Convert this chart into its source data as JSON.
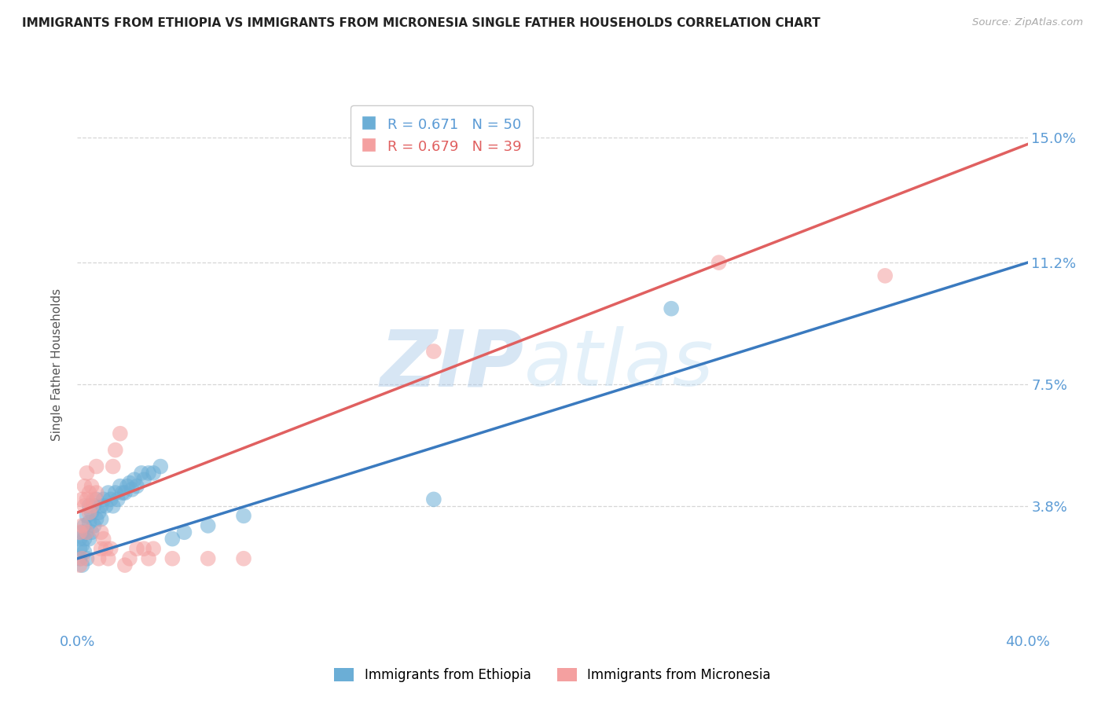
{
  "title": "IMMIGRANTS FROM ETHIOPIA VS IMMIGRANTS FROM MICRONESIA SINGLE FATHER HOUSEHOLDS CORRELATION CHART",
  "source": "Source: ZipAtlas.com",
  "ylabel": "Single Father Households",
  "xlim": [
    0.0,
    0.4
  ],
  "ylim": [
    0.0,
    0.162
  ],
  "yticks": [
    0.038,
    0.075,
    0.112,
    0.15
  ],
  "ytick_labels": [
    "3.8%",
    "7.5%",
    "11.2%",
    "15.0%"
  ],
  "xticks": [
    0.0,
    0.1,
    0.2,
    0.3,
    0.4
  ],
  "xtick_labels": [
    "0.0%",
    "",
    "",
    "",
    "40.0%"
  ],
  "color_ethiopia": "#6baed6",
  "color_micronesia": "#f4a0a0",
  "R_ethiopia": 0.671,
  "N_ethiopia": 50,
  "R_micronesia": 0.679,
  "N_micronesia": 39,
  "watermark_1": "ZIP",
  "watermark_2": "atlas",
  "background_color": "#ffffff",
  "grid_color": "#cccccc",
  "ethiopia_line": [
    [
      0.0,
      0.022
    ],
    [
      0.4,
      0.112
    ]
  ],
  "micronesia_line": [
    [
      0.0,
      0.036
    ],
    [
      0.4,
      0.148
    ]
  ],
  "ethiopia_scatter": [
    [
      0.001,
      0.022
    ],
    [
      0.001,
      0.025
    ],
    [
      0.001,
      0.028
    ],
    [
      0.002,
      0.02
    ],
    [
      0.002,
      0.026
    ],
    [
      0.002,
      0.03
    ],
    [
      0.003,
      0.024
    ],
    [
      0.003,
      0.028
    ],
    [
      0.003,
      0.032
    ],
    [
      0.004,
      0.022
    ],
    [
      0.004,
      0.03
    ],
    [
      0.004,
      0.035
    ],
    [
      0.005,
      0.028
    ],
    [
      0.005,
      0.033
    ],
    [
      0.005,
      0.038
    ],
    [
      0.006,
      0.03
    ],
    [
      0.006,
      0.036
    ],
    [
      0.007,
      0.032
    ],
    [
      0.007,
      0.038
    ],
    [
      0.008,
      0.034
    ],
    [
      0.008,
      0.04
    ],
    [
      0.009,
      0.036
    ],
    [
      0.01,
      0.034
    ],
    [
      0.01,
      0.038
    ],
    [
      0.011,
      0.04
    ],
    [
      0.012,
      0.038
    ],
    [
      0.013,
      0.042
    ],
    [
      0.014,
      0.04
    ],
    [
      0.015,
      0.038
    ],
    [
      0.016,
      0.042
    ],
    [
      0.017,
      0.04
    ],
    [
      0.018,
      0.044
    ],
    [
      0.019,
      0.042
    ],
    [
      0.02,
      0.042
    ],
    [
      0.021,
      0.044
    ],
    [
      0.022,
      0.045
    ],
    [
      0.023,
      0.043
    ],
    [
      0.024,
      0.046
    ],
    [
      0.025,
      0.044
    ],
    [
      0.027,
      0.048
    ],
    [
      0.028,
      0.046
    ],
    [
      0.03,
      0.048
    ],
    [
      0.032,
      0.048
    ],
    [
      0.035,
      0.05
    ],
    [
      0.04,
      0.028
    ],
    [
      0.045,
      0.03
    ],
    [
      0.055,
      0.032
    ],
    [
      0.07,
      0.035
    ],
    [
      0.15,
      0.04
    ],
    [
      0.25,
      0.098
    ]
  ],
  "micronesia_scatter": [
    [
      0.001,
      0.02
    ],
    [
      0.001,
      0.03
    ],
    [
      0.002,
      0.022
    ],
    [
      0.002,
      0.032
    ],
    [
      0.002,
      0.04
    ],
    [
      0.003,
      0.038
    ],
    [
      0.003,
      0.044
    ],
    [
      0.004,
      0.03
    ],
    [
      0.004,
      0.04
    ],
    [
      0.004,
      0.048
    ],
    [
      0.005,
      0.036
    ],
    [
      0.005,
      0.042
    ],
    [
      0.006,
      0.038
    ],
    [
      0.006,
      0.044
    ],
    [
      0.007,
      0.04
    ],
    [
      0.008,
      0.042
    ],
    [
      0.008,
      0.05
    ],
    [
      0.009,
      0.022
    ],
    [
      0.01,
      0.03
    ],
    [
      0.01,
      0.025
    ],
    [
      0.011,
      0.028
    ],
    [
      0.012,
      0.025
    ],
    [
      0.013,
      0.022
    ],
    [
      0.014,
      0.025
    ],
    [
      0.015,
      0.05
    ],
    [
      0.016,
      0.055
    ],
    [
      0.018,
      0.06
    ],
    [
      0.02,
      0.02
    ],
    [
      0.022,
      0.022
    ],
    [
      0.025,
      0.025
    ],
    [
      0.028,
      0.025
    ],
    [
      0.03,
      0.022
    ],
    [
      0.032,
      0.025
    ],
    [
      0.04,
      0.022
    ],
    [
      0.055,
      0.022
    ],
    [
      0.07,
      0.022
    ],
    [
      0.15,
      0.085
    ],
    [
      0.27,
      0.112
    ],
    [
      0.34,
      0.108
    ]
  ]
}
